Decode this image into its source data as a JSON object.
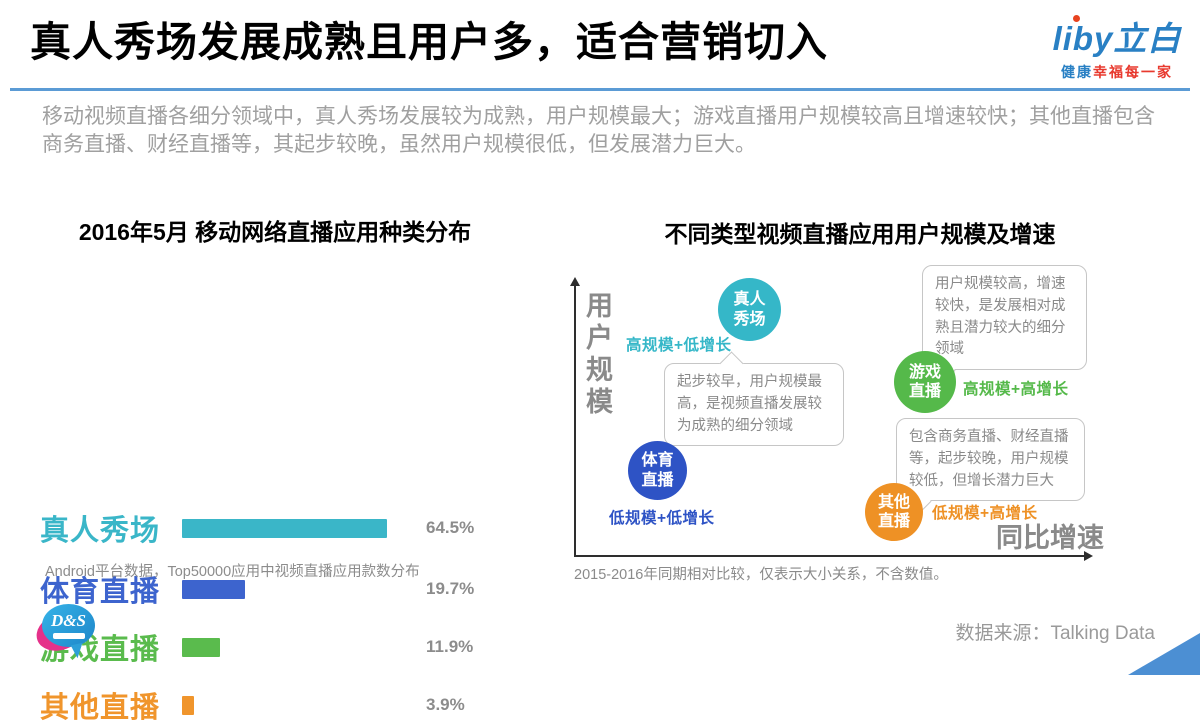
{
  "header": {
    "title": "真人秀场发展成熟且用户多，适合营销切入",
    "logo_text": "liby立白",
    "logo_tagline_blue": "健康",
    "logo_tagline_red": "幸福每一家",
    "accent_color": "#5B9BD5"
  },
  "intro": "移动视频直播各细分领域中，真人秀场发展较为成熟，用户规模最大；游戏直播用户规模较高且增速较快；其他直播包含商务直播、财经直播等，其起步较晚，虽然用户规模很低，但发展潜力巨大。",
  "chart_data": [
    {
      "type": "bar",
      "orientation": "horizontal",
      "title": "2016年5月 移动网络直播应用种类分布",
      "categories": [
        "真人秀场",
        "体育直播",
        "游戏直播",
        "其他直播"
      ],
      "values": [
        64.5,
        19.7,
        11.9,
        3.9
      ],
      "value_labels": [
        "64.5%",
        "19.7%",
        "11.9%",
        "3.9%"
      ],
      "colors": [
        "#3AB6C8",
        "#3D64CE",
        "#5ABB4D",
        "#F0952C"
      ],
      "xlim": [
        0,
        70
      ],
      "grid": false,
      "note": "Android平台数据，Top50000应用中视频直播应用款数分布"
    },
    {
      "type": "scatter",
      "title": "不同类型视频直播应用用户规模及增速",
      "xlabel": "同比增速",
      "ylabel": "用户规模",
      "points": [
        {
          "name": "真人秀场",
          "x": "低增速",
          "y": "高规模",
          "quadrant": "高规模+低增长",
          "color": "#35B7C8"
        },
        {
          "name": "体育直播",
          "x": "低增速",
          "y": "中低规模",
          "quadrant": "低规模+低增长",
          "color": "#2E53C5"
        },
        {
          "name": "游戏直播",
          "x": "高增速",
          "y": "中高规模",
          "quadrant": "高规模+高增长",
          "color": "#55B94A"
        },
        {
          "name": "其他直播",
          "x": "高增速",
          "y": "低规模",
          "quadrant": "低规模+高增长",
          "color": "#EE9125"
        }
      ],
      "annotations": [
        {
          "target": "真人秀场",
          "text": "起步较早，用户规模最高，是视频直播发展较为成熟的细分领域"
        },
        {
          "target": "游戏直播",
          "text": "用户规模较高，增速较快，是发展相对成熟且潜力较大的细分领域"
        },
        {
          "target": "其他直播",
          "text": "包含商务直播、财经直播等，起步较晚，用户规模较低，但增长潜力巨大"
        }
      ],
      "note": "2015-2016年同期相对比较，仅表示大小关系，不含数值。"
    }
  ],
  "footer": {
    "logo_text": "D&S",
    "source": "数据来源：Talking Data"
  }
}
